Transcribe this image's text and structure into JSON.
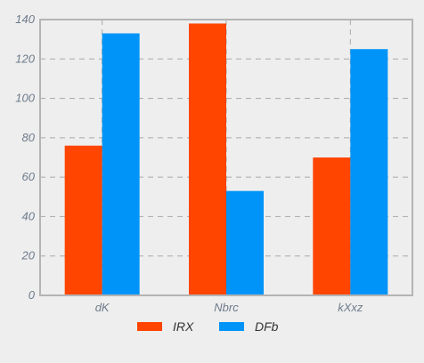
{
  "chart_data": {
    "type": "bar",
    "categories": [
      "dK",
      "Nbrc",
      "kXxz"
    ],
    "series": [
      {
        "name": "IRX",
        "values": [
          76,
          138,
          70
        ],
        "color": "#ff4500"
      },
      {
        "name": "DFb",
        "values": [
          133,
          53,
          125
        ],
        "color": "#0094f8"
      }
    ],
    "title": "",
    "xlabel": "",
    "ylabel": "",
    "ylim": [
      0,
      140
    ],
    "yticks": [
      0,
      20,
      40,
      60,
      80,
      100,
      120,
      140
    ],
    "grid": true,
    "legend_position": "bottom"
  }
}
